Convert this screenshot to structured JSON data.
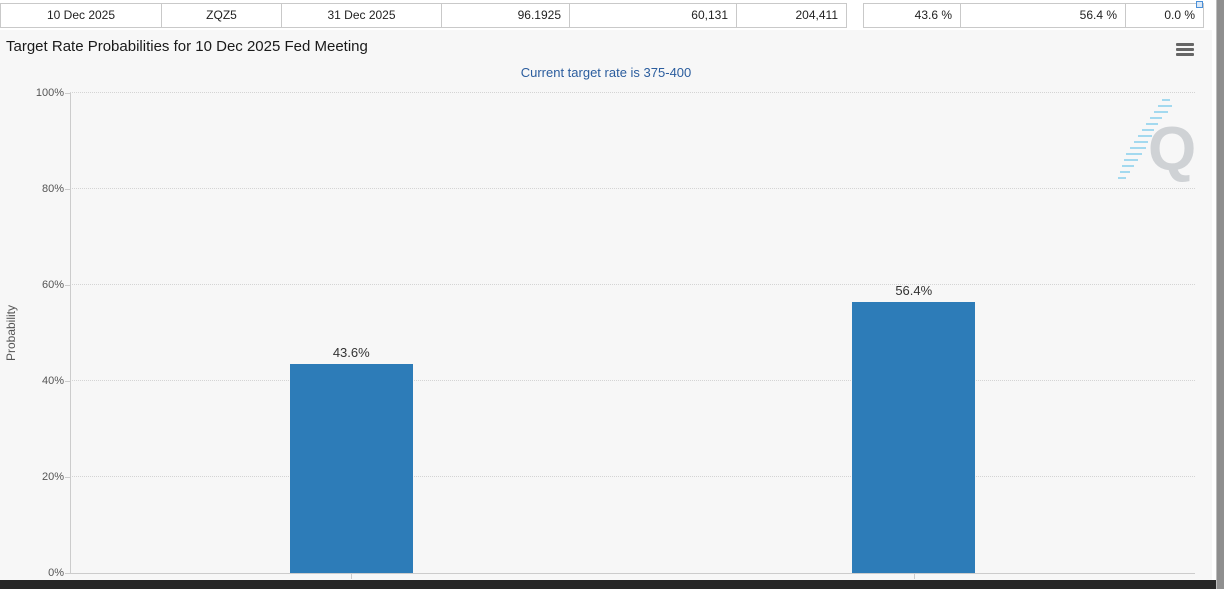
{
  "quote_row": {
    "cells": [
      "10 Dec 2025",
      "ZQZ5",
      "31 Dec 2025",
      "96.1925",
      "60,131",
      "204,411",
      "43.6 %",
      "56.4 %",
      "0.0 %"
    ]
  },
  "chart": {
    "title": "Target Rate Probabilities for 10 Dec 2025 Fed Meeting",
    "subtitle": "Current target rate is 375-400",
    "watermark_letter": "Q"
  },
  "chart_data": {
    "type": "bar",
    "title": "Target Rate Probabilities for 10 Dec 2025 Fed Meeting",
    "subtitle": "Current target rate is 375-400",
    "ylabel": "Probability",
    "ylim": [
      0,
      100
    ],
    "yticks": [
      0,
      20,
      40,
      60,
      80,
      100
    ],
    "ytick_labels": [
      "0%",
      "20%",
      "40%",
      "60%",
      "80%",
      "100%"
    ],
    "categories": [
      "",
      ""
    ],
    "series": [
      {
        "name": "Probability",
        "values": [
          43.6,
          56.4
        ]
      }
    ],
    "data_labels": [
      "43.6%",
      "56.4%"
    ],
    "bar_color": "#2d7cb8",
    "grid": "dotted horizontal",
    "legend": "none"
  },
  "colors": {
    "bar": "#2d7cb8",
    "subtitle_text": "#2b5d9e",
    "panel_background": "#f7f7f7",
    "bottom_bar": "#262626",
    "scrollbar": "#8f8f8f"
  }
}
